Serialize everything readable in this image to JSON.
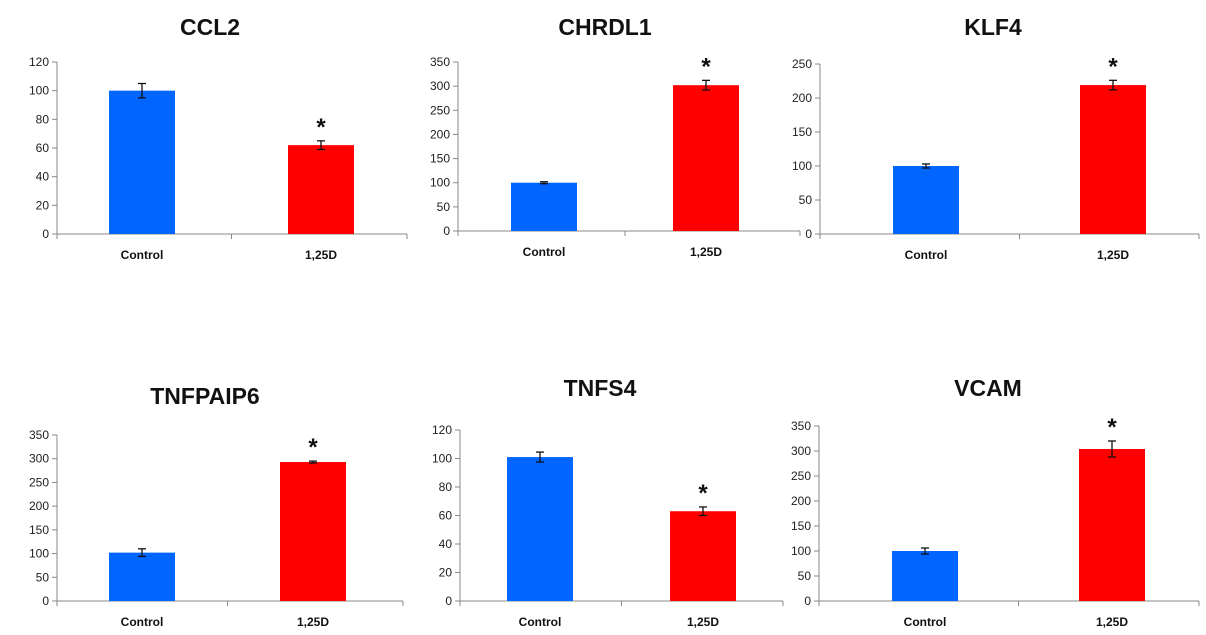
{
  "colors": {
    "control": "#0066ff",
    "treated": "#ff0000",
    "axis": "#888888",
    "error_bar": "#111111"
  },
  "chart_data": [
    {
      "type": "bar",
      "title": "CCL2",
      "categories": [
        "Control",
        "1,25D"
      ],
      "values": [
        100,
        62
      ],
      "errors": [
        5,
        3
      ],
      "annotations": [
        "",
        "*"
      ],
      "ylim": [
        0,
        120
      ],
      "yticks": [
        0,
        20,
        40,
        60,
        80,
        100,
        120
      ],
      "ytick_labels": [
        "0",
        "20",
        "40",
        "60",
        "80",
        "100",
        "120"
      ],
      "grid": false,
      "legend": "none"
    },
    {
      "type": "bar",
      "title": "CHRDL1",
      "categories": [
        "Control",
        "1,25D"
      ],
      "values": [
        100,
        302
      ],
      "errors": [
        2,
        10
      ],
      "annotations": [
        "",
        "*"
      ],
      "ylim": [
        0,
        350
      ],
      "yticks": [
        0,
        50,
        100,
        150,
        200,
        250,
        300,
        350
      ],
      "ytick_labels": [
        "0",
        "50",
        "100",
        "150",
        "200",
        "250",
        "300",
        "350"
      ],
      "grid": false,
      "legend": "none"
    },
    {
      "type": "bar",
      "title": "KLF4",
      "categories": [
        "Control",
        "1,25D"
      ],
      "values": [
        100,
        219
      ],
      "errors": [
        3,
        7
      ],
      "annotations": [
        "",
        "*"
      ],
      "ylim": [
        0,
        250
      ],
      "yticks": [
        0,
        50,
        100,
        150,
        200,
        250
      ],
      "ytick_labels": [
        "0",
        "50",
        "100",
        "150",
        "200",
        "250"
      ],
      "grid": false,
      "legend": "none"
    },
    {
      "type": "bar",
      "title": "TNFPAIP6",
      "categories": [
        "Control",
        "1,25D"
      ],
      "values": [
        102,
        293
      ],
      "errors": [
        8,
        2
      ],
      "annotations": [
        "",
        "*"
      ],
      "ylim": [
        0,
        350
      ],
      "yticks": [
        0,
        50,
        100,
        150,
        200,
        250,
        300,
        350
      ],
      "ytick_labels": [
        "0",
        "50",
        "100",
        "150",
        "200",
        "250",
        "300",
        "350"
      ],
      "grid": false,
      "legend": "none"
    },
    {
      "type": "bar",
      "title": "TNFS4",
      "categories": [
        "Control",
        "1,25D"
      ],
      "values": [
        101,
        63
      ],
      "errors": [
        3.5,
        3
      ],
      "annotations": [
        "",
        "*"
      ],
      "ylim": [
        0,
        120
      ],
      "yticks": [
        0,
        20,
        40,
        60,
        80,
        100,
        120
      ],
      "ytick_labels": [
        "0",
        "20",
        "40",
        "60",
        "80",
        "100",
        "120"
      ],
      "grid": false,
      "legend": "none"
    },
    {
      "type": "bar",
      "title": "VCAM",
      "categories": [
        "Control",
        "1,25D"
      ],
      "values": [
        100,
        304
      ],
      "errors": [
        6,
        16
      ],
      "annotations": [
        "",
        "*"
      ],
      "ylim": [
        0,
        350
      ],
      "yticks": [
        0,
        50,
        100,
        150,
        200,
        250,
        300,
        350
      ],
      "ytick_labels": [
        "0",
        "50",
        "100",
        "150",
        "200",
        "250",
        "300",
        "350"
      ],
      "grid": false,
      "legend": "none"
    }
  ]
}
